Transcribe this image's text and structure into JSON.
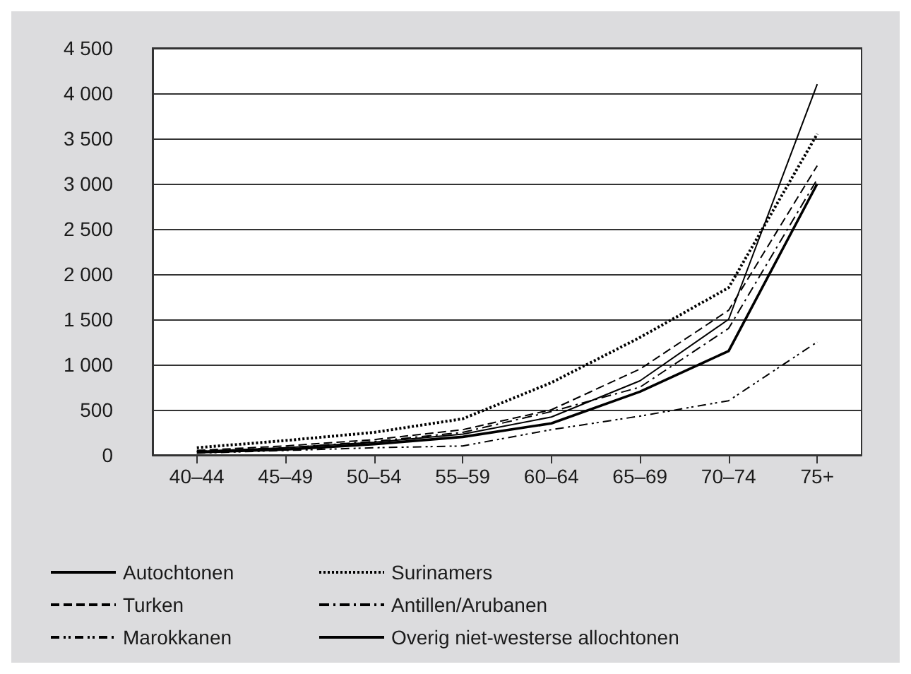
{
  "chart_data": {
    "type": "line",
    "categories": [
      "40–44",
      "45–49",
      "50–54",
      "55–59",
      "60–64",
      "65–69",
      "70–74",
      "75+"
    ],
    "series": [
      {
        "name": "Autochtonen",
        "color": "#000000",
        "line_style": "solid",
        "values": [
          40,
          80,
          140,
          230,
          420,
          820,
          1500,
          4100
        ]
      },
      {
        "name": "Surinamers",
        "color": "#000000",
        "line_style": "dotted",
        "values": [
          80,
          160,
          250,
          400,
          800,
          1300,
          1850,
          3550
        ]
      },
      {
        "name": "Turken",
        "color": "#000000",
        "line_style": "dashed",
        "values": [
          50,
          100,
          170,
          280,
          500,
          950,
          1600,
          3200
        ]
      },
      {
        "name": "Antillen/Arubanen",
        "color": "#000000",
        "line_style": "dashdot",
        "values": [
          40,
          80,
          150,
          250,
          480,
          750,
          1400,
          3050
        ]
      },
      {
        "name": "Marokkanen",
        "color": "#000000",
        "line_style": "dashdotdot",
        "values": [
          20,
          50,
          80,
          100,
          280,
          430,
          600,
          1250
        ]
      },
      {
        "name": "Overig niet-westerse allochtonen",
        "color": "#000000",
        "line_style": "solid",
        "values": [
          30,
          60,
          120,
          200,
          350,
          700,
          1150,
          3000
        ]
      }
    ],
    "ylim": [
      0,
      4500
    ],
    "yticks": [
      0,
      500,
      {
        "value": 1000,
        "label": "1 000"
      },
      {
        "value": 1500,
        "label": "1 500"
      },
      {
        "value": 2000,
        "label": "2 000"
      },
      {
        "value": 2500,
        "label": "2 500"
      },
      {
        "value": 3000,
        "label": "3 000"
      },
      {
        "value": 3500,
        "label": "3 500"
      },
      {
        "value": 4000,
        "label": "4 000"
      },
      {
        "value": 4500,
        "label": "4 500"
      }
    ],
    "grid": "y",
    "legend": "bottom",
    "marker": "none"
  }
}
